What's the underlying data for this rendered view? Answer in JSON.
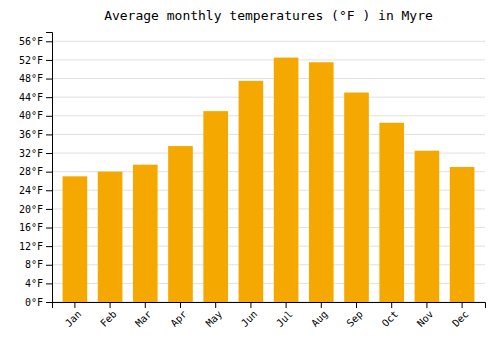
{
  "chart_data": {
    "type": "bar",
    "title": "Average monthly temperatures (°F ) in Myre",
    "categories": [
      "Jan",
      "Feb",
      "Mar",
      "Apr",
      "May",
      "Jun",
      "Jul",
      "Aug",
      "Sep",
      "Oct",
      "Nov",
      "Dec"
    ],
    "values": [
      27,
      28,
      29.5,
      33.5,
      41,
      47.5,
      52.5,
      51.5,
      45,
      38.5,
      32.5,
      29
    ],
    "color": "#F5A800",
    "ylim": [
      0,
      58
    ],
    "yticks": [
      {
        "value": 0,
        "label": "0°F"
      },
      {
        "value": 4,
        "label": "4°F"
      },
      {
        "value": 8,
        "label": "8°F"
      },
      {
        "value": 12,
        "label": "12°F"
      },
      {
        "value": 16,
        "label": "16°F"
      },
      {
        "value": 20,
        "label": "20°F"
      },
      {
        "value": 24,
        "label": "24°F"
      },
      {
        "value": 28,
        "label": "28°F"
      },
      {
        "value": 32,
        "label": "32°F"
      },
      {
        "value": 36,
        "label": "36°F"
      },
      {
        "value": 40,
        "label": "40°F"
      },
      {
        "value": 44,
        "label": "44°F"
      },
      {
        "value": 48,
        "label": "48°F"
      },
      {
        "value": 52,
        "label": "52°F"
      },
      {
        "value": 56,
        "label": "56°F"
      }
    ],
    "grid": true
  }
}
